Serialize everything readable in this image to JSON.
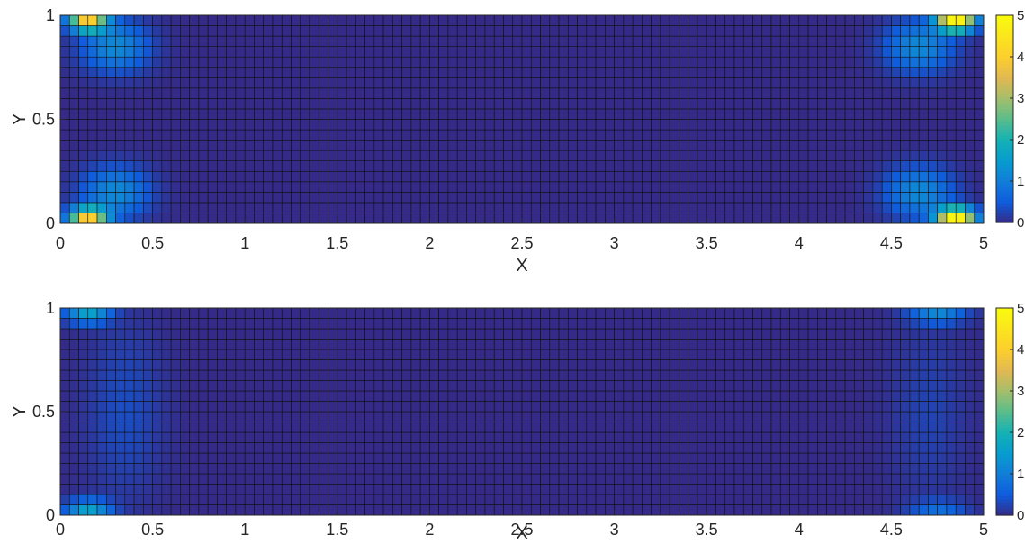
{
  "chart_data": [
    {
      "type": "heatmap",
      "xlabel": "X",
      "ylabel": "Y",
      "xlim": [
        0,
        5
      ],
      "ylim": [
        0,
        1
      ],
      "xticks": [
        "0",
        "0.5",
        "1",
        "1.5",
        "2",
        "2.5",
        "3",
        "3.5",
        "4",
        "4.5",
        "5"
      ],
      "yticks": [
        "0",
        "0.5",
        "1"
      ],
      "grid": {
        "nx": 100,
        "ny": 20
      },
      "colorbar": {
        "min": 0,
        "max": 5,
        "ticks": [
          "0",
          "1",
          "2",
          "3",
          "4",
          "5"
        ],
        "colormap": "parula"
      },
      "hotspots": [
        {
          "x": 0.15,
          "y": 0.975,
          "peak": 4.0,
          "sx": 0.1,
          "sy": 0.05
        },
        {
          "x": 0.3,
          "y": 0.85,
          "peak": 1.2,
          "sx": 0.18,
          "sy": 0.12
        },
        {
          "x": 0.15,
          "y": 0.025,
          "peak": 4.0,
          "sx": 0.1,
          "sy": 0.05
        },
        {
          "x": 0.3,
          "y": 0.15,
          "peak": 1.2,
          "sx": 0.18,
          "sy": 0.12
        },
        {
          "x": 4.85,
          "y": 0.975,
          "peak": 5.0,
          "sx": 0.1,
          "sy": 0.05
        },
        {
          "x": 4.65,
          "y": 0.85,
          "peak": 1.2,
          "sx": 0.18,
          "sy": 0.12
        },
        {
          "x": 4.85,
          "y": 0.025,
          "peak": 5.0,
          "sx": 0.1,
          "sy": 0.05
        },
        {
          "x": 4.65,
          "y": 0.15,
          "peak": 1.2,
          "sx": 0.18,
          "sy": 0.12
        }
      ]
    },
    {
      "type": "heatmap",
      "xlabel": "X",
      "ylabel": "Y",
      "xlim": [
        0,
        5
      ],
      "ylim": [
        0,
        1
      ],
      "xticks": [
        "0",
        "0.5",
        "1",
        "1.5",
        "2",
        "2.5",
        "3",
        "3.5",
        "4",
        "4.5",
        "5"
      ],
      "yticks": [
        "0",
        "0.5",
        "1"
      ],
      "grid": {
        "nx": 100,
        "ny": 20
      },
      "colorbar": {
        "min": 0,
        "max": 5,
        "ticks": [
          "0",
          "1",
          "2",
          "3",
          "4",
          "5"
        ],
        "colormap": "parula"
      },
      "hotspots": [
        {
          "x": 0.15,
          "y": 0.975,
          "peak": 1.6,
          "sx": 0.12,
          "sy": 0.05
        },
        {
          "x": 0.15,
          "y": 0.025,
          "peak": 1.6,
          "sx": 0.12,
          "sy": 0.05
        },
        {
          "x": 0.35,
          "y": 0.5,
          "peak": 0.35,
          "sx": 0.2,
          "sy": 0.4
        },
        {
          "x": 4.75,
          "y": 0.975,
          "peak": 1.1,
          "sx": 0.15,
          "sy": 0.05
        },
        {
          "x": 4.75,
          "y": 0.025,
          "peak": 0.7,
          "sx": 0.15,
          "sy": 0.05
        },
        {
          "x": 4.7,
          "y": 0.5,
          "peak": 0.25,
          "sx": 0.2,
          "sy": 0.4
        }
      ]
    }
  ]
}
